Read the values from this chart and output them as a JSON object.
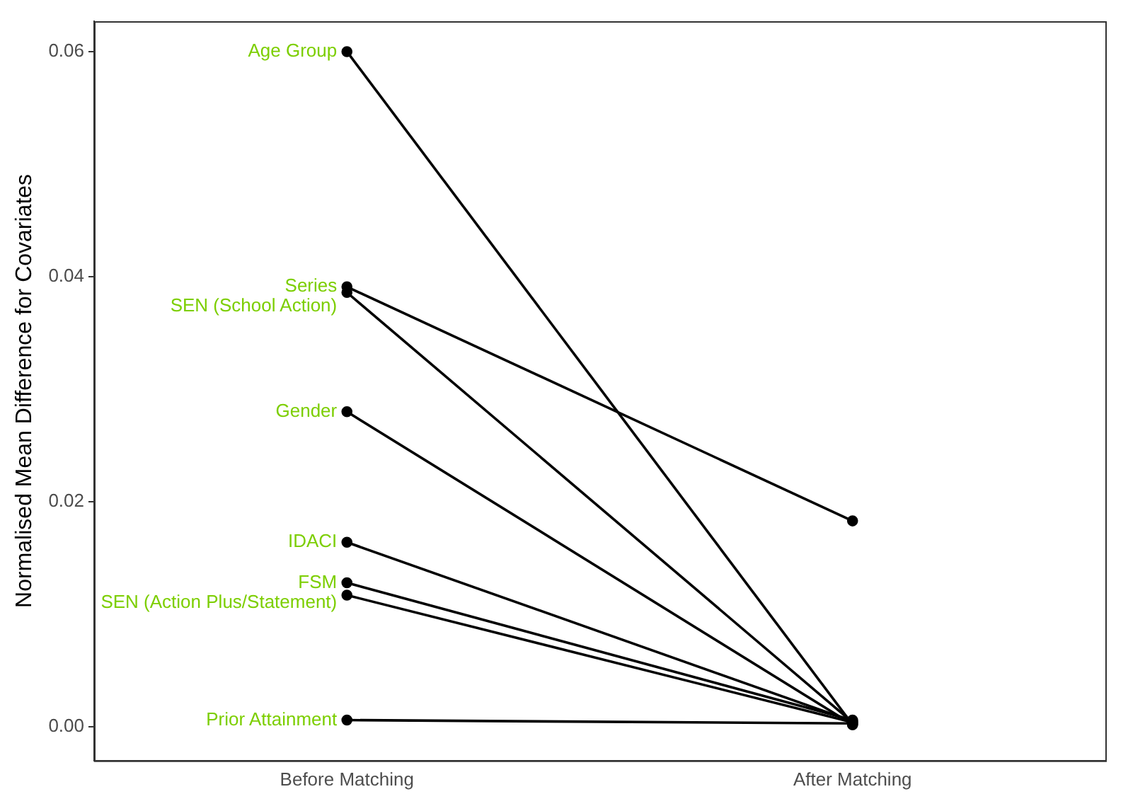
{
  "chart_data": {
    "type": "line",
    "ylabel": "Normalised Mean Difference for Covariates",
    "categories": [
      "Before Matching",
      "After Matching"
    ],
    "series": [
      {
        "name": "Age Group",
        "color": "#000000",
        "values": [
          0.06,
          0.0002
        ]
      },
      {
        "name": "Series",
        "color": "#000000",
        "values": [
          0.0391,
          0.0183
        ]
      },
      {
        "name": "SEN (School Action)",
        "color": "#000000",
        "values": [
          0.0386,
          0.0004
        ]
      },
      {
        "name": "Gender",
        "color": "#000000",
        "values": [
          0.028,
          0.0002
        ]
      },
      {
        "name": "IDACI",
        "color": "#000000",
        "values": [
          0.0164,
          0.0005
        ]
      },
      {
        "name": "FSM",
        "color": "#000000",
        "values": [
          0.0128,
          0.0006
        ]
      },
      {
        "name": "SEN (Action Plus/Statement)",
        "color": "#000000",
        "values": [
          0.0117,
          0.0004
        ]
      },
      {
        "name": "Prior Attainment",
        "color": "#000000",
        "values": [
          0.0006,
          0.0003
        ]
      }
    ],
    "ylim": [
      -0.003,
      0.0627
    ],
    "yticks": [
      {
        "value": 0,
        "label": "0.00"
      },
      {
        "value": 0.02,
        "label": "0.02"
      },
      {
        "value": 0.04,
        "label": "0.04"
      },
      {
        "value": 0.06,
        "label": "0.06"
      }
    ],
    "grid": false,
    "legend": false,
    "marker": "circle",
    "line_style": "solid"
  }
}
